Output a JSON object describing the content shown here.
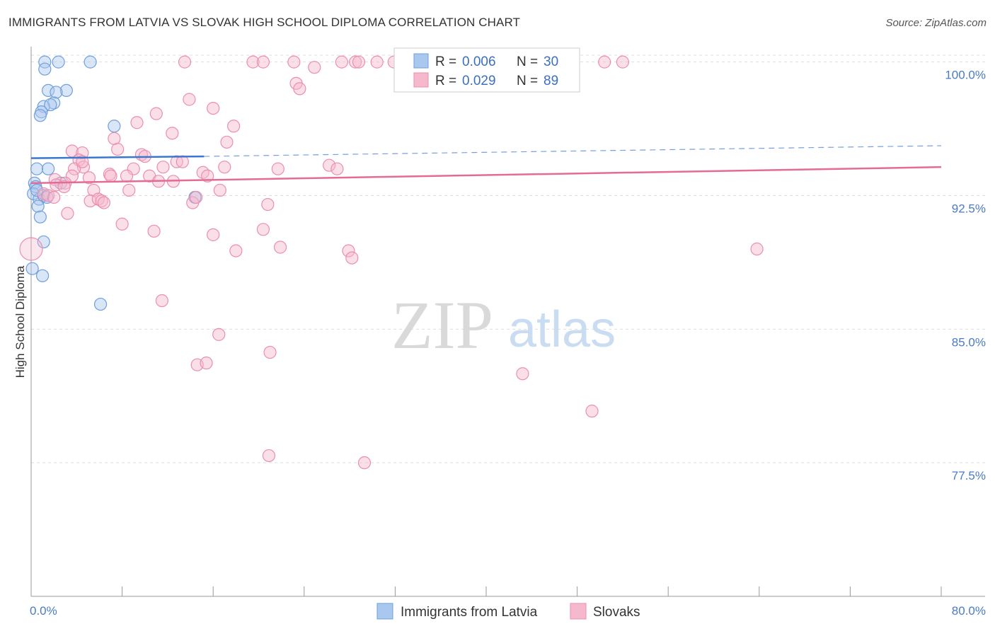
{
  "title": "IMMIGRANTS FROM LATVIA VS SLOVAK HIGH SCHOOL DIPLOMA CORRELATION CHART",
  "source": "Source: ZipAtlas.com",
  "watermark": {
    "zip": "ZIP",
    "atlas": "atlas"
  },
  "colors": {
    "latvia_fill": "#aac8ee",
    "latvia_stroke": "#6f9fdc",
    "latvia_line": "#3a78cf",
    "slovak_fill": "#f6b8cc",
    "slovak_stroke": "#ea8fae",
    "slovak_line": "#e46b95",
    "grid": "#dddddd",
    "axis": "#999999"
  },
  "legend": {
    "rows": [
      {
        "r_label": "R =",
        "r_value": "0.006",
        "n_label": "N =",
        "n_value": "30"
      },
      {
        "r_label": "R =",
        "r_value": "0.029",
        "n_label": "N =",
        "n_value": "89"
      }
    ]
  },
  "chart_data": {
    "type": "scatter",
    "title": "IMMIGRANTS FROM LATVIA VS SLOVAK HIGH SCHOOL DIPLOMA CORRELATION CHART",
    "xlabel": "",
    "ylabel": "High School Diploma",
    "xlim": [
      0,
      80
    ],
    "ylim": [
      70.0,
      100.7
    ],
    "x_tick_labels": [
      "0.0%",
      "80.0%"
    ],
    "y_ticks": [
      77.5,
      85.0,
      92.5,
      100.0
    ],
    "y_tick_labels": [
      "77.5%",
      "85.0%",
      "92.5%",
      "100.0%"
    ],
    "grid": true,
    "legend_position": "top-center",
    "series": [
      {
        "name": "Immigrants from Latvia",
        "R": 0.006,
        "N": 30,
        "trend": {
          "x": [
            0,
            15.2
          ],
          "y": [
            94.6,
            94.7
          ],
          "dashed_to": [
            80,
            95.3
          ]
        },
        "points": [
          [
            1.2,
            100.0
          ],
          [
            2.4,
            100.0
          ],
          [
            5.2,
            100.0
          ],
          [
            1.2,
            99.6
          ],
          [
            1.5,
            98.4
          ],
          [
            3.1,
            98.4
          ],
          [
            2.2,
            98.3
          ],
          [
            2.0,
            97.7
          ],
          [
            1.1,
            97.5
          ],
          [
            1.7,
            97.6
          ],
          [
            0.9,
            97.2
          ],
          [
            0.8,
            97.0
          ],
          [
            7.3,
            96.4
          ],
          [
            0.5,
            94.0
          ],
          [
            1.5,
            94.0
          ],
          [
            0.3,
            93.2
          ],
          [
            0.4,
            93.0
          ],
          [
            2.6,
            93.2
          ],
          [
            0.2,
            92.6
          ],
          [
            0.7,
            92.3
          ],
          [
            1.1,
            92.5
          ],
          [
            1.4,
            92.4
          ],
          [
            14.4,
            92.4
          ],
          [
            0.6,
            91.9
          ],
          [
            0.8,
            91.3
          ],
          [
            1.1,
            89.9
          ],
          [
            0.1,
            88.4
          ],
          [
            1.0,
            88.0
          ],
          [
            6.1,
            86.4
          ],
          [
            0.5,
            92.8
          ]
        ]
      },
      {
        "name": "Slovaks",
        "R": 0.029,
        "N": 89,
        "trend": {
          "x": [
            0,
            80
          ],
          "y": [
            93.2,
            94.1
          ]
        },
        "points": [
          [
            13.5,
            100.0
          ],
          [
            19.5,
            100.0
          ],
          [
            20.4,
            100.0
          ],
          [
            23.1,
            100.0
          ],
          [
            27.3,
            100.0
          ],
          [
            28.5,
            100.0
          ],
          [
            28.8,
            100.0
          ],
          [
            30.4,
            100.0
          ],
          [
            31.9,
            100.0
          ],
          [
            33.7,
            100.0
          ],
          [
            35.2,
            100.0
          ],
          [
            38.3,
            100.0
          ],
          [
            50.4,
            100.0
          ],
          [
            52.0,
            100.0
          ],
          [
            24.9,
            99.7
          ],
          [
            23.3,
            98.8
          ],
          [
            23.6,
            98.5
          ],
          [
            13.9,
            97.9
          ],
          [
            16.0,
            97.4
          ],
          [
            11.0,
            97.1
          ],
          [
            9.3,
            96.6
          ],
          [
            17.8,
            96.4
          ],
          [
            12.4,
            96.0
          ],
          [
            7.3,
            95.7
          ],
          [
            17.2,
            95.5
          ],
          [
            3.6,
            95.0
          ],
          [
            4.5,
            94.9
          ],
          [
            7.6,
            95.1
          ],
          [
            9.7,
            94.8
          ],
          [
            10.0,
            94.7
          ],
          [
            4.2,
            94.5
          ],
          [
            12.8,
            94.4
          ],
          [
            13.3,
            94.4
          ],
          [
            26.2,
            94.2
          ],
          [
            4.6,
            94.1
          ],
          [
            11.6,
            94.1
          ],
          [
            17.0,
            94.1
          ],
          [
            3.8,
            94.0
          ],
          [
            9.0,
            94.0
          ],
          [
            21.7,
            94.0
          ],
          [
            26.9,
            94.0
          ],
          [
            15.1,
            93.8
          ],
          [
            3.6,
            93.6
          ],
          [
            6.9,
            93.7
          ],
          [
            7.0,
            93.6
          ],
          [
            8.4,
            93.6
          ],
          [
            10.4,
            93.6
          ],
          [
            15.5,
            93.6
          ],
          [
            5.1,
            93.5
          ],
          [
            2.1,
            93.4
          ],
          [
            11.2,
            93.3
          ],
          [
            12.5,
            93.3
          ],
          [
            3.0,
            93.2
          ],
          [
            2.2,
            93.1
          ],
          [
            2.9,
            93.0
          ],
          [
            8.6,
            92.8
          ],
          [
            5.5,
            92.8
          ],
          [
            16.6,
            92.8
          ],
          [
            1.1,
            92.6
          ],
          [
            1.5,
            92.5
          ],
          [
            2.0,
            92.4
          ],
          [
            5.2,
            92.2
          ],
          [
            5.9,
            92.3
          ],
          [
            6.2,
            92.2
          ],
          [
            6.4,
            92.1
          ],
          [
            14.2,
            92.1
          ],
          [
            20.8,
            92.0
          ],
          [
            14.5,
            92.4
          ],
          [
            3.2,
            91.5
          ],
          [
            8.0,
            90.9
          ],
          [
            10.8,
            90.5
          ],
          [
            20.4,
            90.6
          ],
          [
            16.0,
            90.3
          ],
          [
            21.9,
            89.6
          ],
          [
            18.0,
            89.4
          ],
          [
            27.9,
            89.4
          ],
          [
            28.2,
            89.0
          ],
          [
            63.8,
            89.5
          ],
          [
            0.0,
            89.5
          ],
          [
            11.5,
            86.6
          ],
          [
            16.5,
            84.7
          ],
          [
            21.0,
            83.7
          ],
          [
            14.6,
            83.0
          ],
          [
            15.4,
            83.1
          ],
          [
            43.2,
            82.5
          ],
          [
            49.3,
            80.4
          ],
          [
            20.9,
            77.9
          ],
          [
            29.3,
            77.5
          ],
          [
            4.5,
            94.4
          ]
        ]
      }
    ]
  }
}
